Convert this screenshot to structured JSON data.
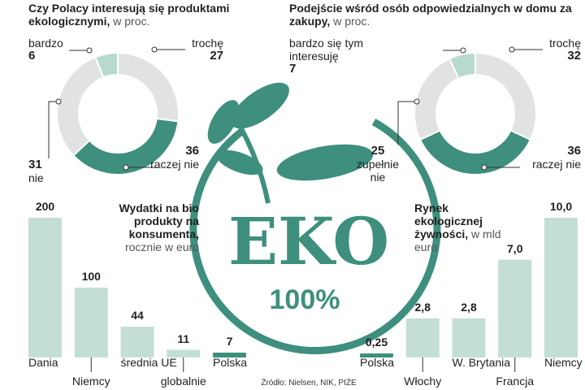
{
  "chart_data": [
    {
      "type": "donut",
      "title": "Czy Polacy interesują się produktami ekologicznymi,",
      "subtitle": "w proc.",
      "categories": [
        "trochę",
        "raczej nie",
        "nie",
        "bardzo"
      ],
      "values": [
        27,
        36,
        31,
        6
      ],
      "colors": [
        "#e1e2e2",
        "#3e8f7d",
        "#e1e2e2",
        "#b7dacc"
      ]
    },
    {
      "type": "donut",
      "title": "Podejście wśród osób odpowiedzialnych w domu za zakupy,",
      "subtitle": "w proc.",
      "categories": [
        "trochę",
        "raczej nie",
        "zupełnie nie",
        "bardzo się tym interesuję"
      ],
      "values": [
        32,
        36,
        25,
        7
      ],
      "colors": [
        "#e1e2e2",
        "#3e8f7d",
        "#e1e2e2",
        "#b7dacc"
      ]
    },
    {
      "type": "bar",
      "title": "Wydatki na bio produkty na konsumenta,",
      "subtitle": "rocznie w euro",
      "categories": [
        "Dania",
        "Niemcy",
        "średnia UE",
        "globalnie",
        "Polska"
      ],
      "values": [
        200,
        100,
        44,
        11,
        7
      ],
      "colors": [
        "#c3ded5",
        "#c3ded5",
        "#c3ded5",
        "#c3ded5",
        "#3e8f7d"
      ]
    },
    {
      "type": "bar",
      "title": "Rynek ekologicznej żywności,",
      "subtitle": "w mld euro",
      "categories": [
        "Polska",
        "Włochy",
        "W. Brytania",
        "Francja",
        "Niemcy"
      ],
      "values": [
        0.25,
        2.8,
        2.8,
        7.0,
        10.0
      ],
      "value_labels": [
        "0,25",
        "2,8",
        "2,8",
        "7,0",
        "10,0"
      ],
      "colors": [
        "#3e8f7d",
        "#c3ded5",
        "#c3ded5",
        "#c3ded5",
        "#c3ded5"
      ]
    }
  ],
  "logo": {
    "text": "EKO",
    "subtext": "100%"
  },
  "source": "Źródło: Nielsen, NIK, PIŻE"
}
